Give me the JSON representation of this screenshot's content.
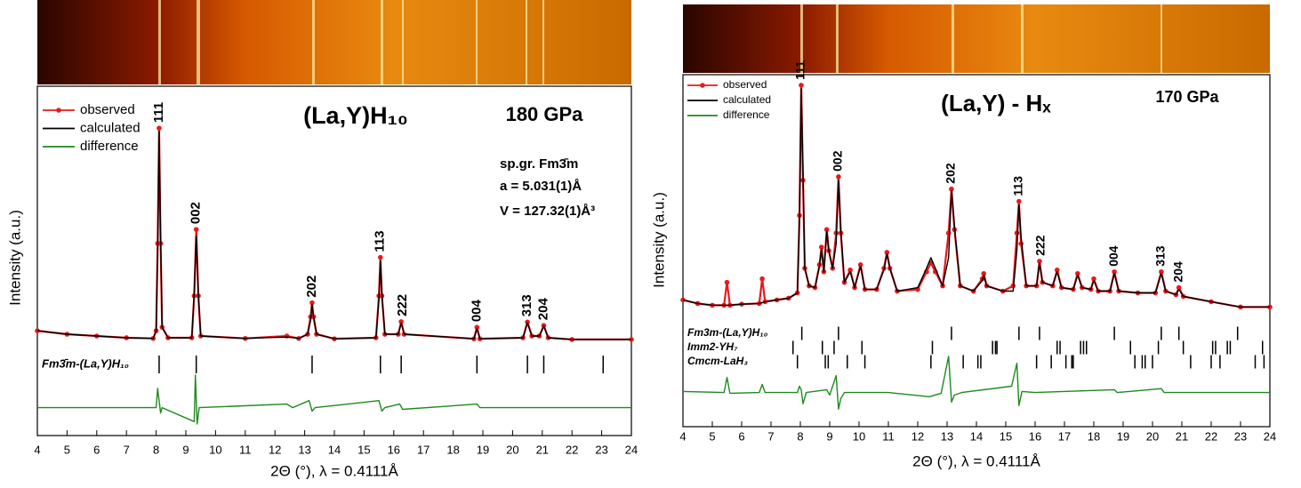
{
  "chart_data": [
    {
      "type": "line",
      "title": "(La,Y)H₁₀",
      "annotations": [
        "180 GPa",
        "sp.gr. Fm3̄m",
        "a = 5.031(1)Å",
        "V = 127.32(1)Å³"
      ],
      "x_label": "2Θ (°), λ = 0.4111Å",
      "y_label": "Intensity (a.u.)",
      "xlim": [
        4,
        24
      ],
      "xticks": [
        4,
        5,
        6,
        7,
        8,
        9,
        10,
        11,
        12,
        13,
        14,
        15,
        16,
        17,
        18,
        19,
        20,
        21,
        22,
        23,
        24
      ],
      "ylim": [
        0,
        100
      ],
      "series": [
        {
          "name": "observed",
          "color": "#e8191c",
          "marker": true,
          "x": [
            4.0,
            5.0,
            6.0,
            7.0,
            7.9,
            8.0,
            8.05,
            8.1,
            8.15,
            8.2,
            8.4,
            9.2,
            9.28,
            9.35,
            9.42,
            9.5,
            11.0,
            12.4,
            12.8,
            13.1,
            13.2,
            13.25,
            13.3,
            13.4,
            14.0,
            15.4,
            15.5,
            15.55,
            15.6,
            15.7,
            16.15,
            16.25,
            16.35,
            18.7,
            18.8,
            18.9,
            20.35,
            20.5,
            20.65,
            20.9,
            21.05,
            21.2,
            22.0,
            24.0
          ],
          "values": [
            30,
            29,
            28.5,
            28,
            27.8,
            30,
            55,
            88,
            55,
            31,
            28,
            28,
            40,
            59,
            40,
            28.5,
            27.8,
            28.5,
            27.8,
            29,
            34,
            38,
            34,
            29,
            27.7,
            28,
            40,
            51,
            40,
            29,
            29,
            32.6,
            29,
            27.7,
            31,
            27.7,
            28,
            32.5,
            28.5,
            28.5,
            31.5,
            28,
            27.5,
            27.5
          ]
        },
        {
          "name": "calculated",
          "color": "#000000",
          "marker": false,
          "x": [
            4.0,
            5.0,
            6.0,
            7.0,
            7.9,
            8.0,
            8.05,
            8.1,
            8.15,
            8.2,
            8.4,
            9.2,
            9.28,
            9.35,
            9.42,
            9.5,
            11.0,
            12.4,
            12.8,
            13.1,
            13.2,
            13.25,
            13.3,
            13.4,
            14.0,
            15.4,
            15.5,
            15.55,
            15.6,
            15.7,
            16.15,
            16.25,
            16.35,
            18.7,
            18.8,
            18.9,
            20.35,
            20.5,
            20.65,
            20.9,
            21.05,
            21.2,
            22.0,
            24.0
          ],
          "values": [
            30,
            29,
            28.5,
            28,
            27.8,
            30,
            52,
            87,
            57,
            31,
            28,
            28,
            41,
            57,
            41,
            28.5,
            27.8,
            28.2,
            27.8,
            29,
            33,
            37.5,
            34,
            29,
            27.7,
            28,
            39,
            50,
            41,
            29,
            29,
            32.2,
            29,
            27.7,
            30.5,
            27.7,
            28,
            32.3,
            28.5,
            28.5,
            31.3,
            28,
            27.5,
            27.5
          ]
        },
        {
          "name": "difference",
          "color": "#1e8a1e",
          "marker": false,
          "x": [
            4.0,
            8.0,
            8.05,
            8.1,
            8.15,
            8.2,
            9.28,
            9.32,
            9.38,
            9.45,
            12.4,
            12.6,
            13.15,
            13.25,
            13.35,
            15.5,
            15.6,
            15.7,
            16.2,
            16.3,
            18.8,
            18.9,
            24.0
          ],
          "values": [
            8,
            8,
            13.5,
            10,
            6.5,
            8,
            4,
            17.3,
            3.3,
            8,
            9,
            8,
            10,
            7,
            8,
            10,
            7,
            8,
            9,
            7.5,
            9,
            8,
            8
          ]
        }
      ],
      "peak_labels": [
        {
          "label": "111",
          "x": 8.1
        },
        {
          "label": "002",
          "x": 9.35
        },
        {
          "label": "202",
          "x": 13.25
        },
        {
          "label": "113",
          "x": 15.55
        },
        {
          "label": "222",
          "x": 16.3
        },
        {
          "label": "004",
          "x": 18.8
        },
        {
          "label": "313",
          "x": 20.5
        },
        {
          "label": "204",
          "x": 21.05
        }
      ],
      "reflections": [
        {
          "name": "Fm3̄m-(La,Y)H₁₀",
          "positions": [
            8.1,
            9.35,
            13.25,
            15.55,
            16.25,
            18.8,
            20.5,
            21.05,
            23.05
          ]
        }
      ]
    },
    {
      "type": "line",
      "title": "(La,Y) - Hₓ",
      "annotations": [
        "170 GPa"
      ],
      "x_label": "2Θ (°), λ = 0.4111Å",
      "y_label": "Intensity (a.u.)",
      "xlim": [
        4,
        24
      ],
      "xticks": [
        4,
        5,
        6,
        7,
        8,
        9,
        10,
        11,
        12,
        13,
        14,
        15,
        16,
        17,
        18,
        19,
        20,
        21,
        22,
        23,
        24
      ],
      "ylim": [
        0,
        100
      ],
      "series": [
        {
          "name": "observed",
          "color": "#e8191c",
          "marker": true,
          "x": [
            4.0,
            4.5,
            5.0,
            5.4,
            5.5,
            5.6,
            6.0,
            6.6,
            6.7,
            6.8,
            7.2,
            7.6,
            7.9,
            7.97,
            8.03,
            8.09,
            8.15,
            8.3,
            8.5,
            8.65,
            8.72,
            8.8,
            8.9,
            8.97,
            9.1,
            9.22,
            9.3,
            9.38,
            9.5,
            9.7,
            9.85,
            10.05,
            10.2,
            10.6,
            10.85,
            10.95,
            11.05,
            11.3,
            12.0,
            12.3,
            12.45,
            12.6,
            12.85,
            13.05,
            13.15,
            13.25,
            13.45,
            13.9,
            14.2,
            14.25,
            14.35,
            14.9,
            15.25,
            15.38,
            15.45,
            15.52,
            15.7,
            16.05,
            16.15,
            16.25,
            16.6,
            16.75,
            16.9,
            17.3,
            17.45,
            17.6,
            17.9,
            18.0,
            18.15,
            18.55,
            18.7,
            18.85,
            19.5,
            20.1,
            20.3,
            20.45,
            20.8,
            20.9,
            21.05,
            22.0,
            23.0,
            24.0
          ],
          "values": [
            36,
            35,
            34.5,
            34.5,
            41,
            34.5,
            34.8,
            35,
            42,
            35.5,
            36,
            36.5,
            38,
            60,
            97,
            70,
            45,
            40,
            39.5,
            46,
            51,
            44,
            56,
            50,
            45,
            55,
            71,
            55,
            41,
            44.5,
            39.5,
            46,
            39,
            39,
            45,
            49.5,
            45,
            38.5,
            39,
            44,
            46.5,
            44,
            40,
            55,
            67.5,
            56,
            40,
            38.5,
            42,
            43.5,
            40,
            38.5,
            40,
            55,
            64,
            52,
            40,
            40,
            47,
            41,
            40,
            44.5,
            39.5,
            39,
            43.5,
            39.5,
            39,
            42,
            38.5,
            38.5,
            44,
            38.5,
            38,
            38,
            44,
            38.5,
            37.5,
            39.5,
            37,
            35.5,
            34,
            34
          ]
        },
        {
          "name": "calculated",
          "color": "#000000",
          "marker": false,
          "x": [
            4.0,
            4.5,
            5.0,
            5.4,
            5.5,
            5.6,
            6.0,
            6.6,
            6.7,
            6.8,
            7.2,
            7.6,
            7.9,
            7.97,
            8.03,
            8.09,
            8.15,
            8.3,
            8.5,
            8.65,
            8.72,
            8.8,
            8.9,
            8.97,
            9.1,
            9.22,
            9.3,
            9.38,
            9.5,
            9.7,
            9.85,
            10.05,
            10.2,
            10.6,
            10.85,
            10.95,
            11.05,
            11.3,
            12.0,
            12.3,
            12.45,
            12.6,
            12.85,
            13.05,
            13.15,
            13.25,
            13.45,
            13.9,
            14.2,
            14.25,
            14.35,
            14.9,
            15.25,
            15.38,
            15.45,
            15.52,
            15.7,
            16.05,
            16.15,
            16.25,
            16.6,
            16.75,
            16.9,
            17.3,
            17.45,
            17.6,
            17.9,
            18.0,
            18.15,
            18.55,
            18.7,
            18.85,
            19.5,
            20.1,
            20.3,
            20.45,
            20.8,
            20.9,
            21.05,
            22.0,
            23.0,
            24.0
          ],
          "values": [
            36,
            35,
            34.5,
            34.5,
            34.5,
            34.5,
            34.8,
            35,
            35.2,
            35.5,
            36,
            36.5,
            38,
            58,
            96,
            72,
            45,
            40,
            39.5,
            45.5,
            50.5,
            44,
            55.5,
            50,
            45,
            52,
            70,
            56,
            41,
            44,
            39.5,
            45.5,
            39,
            39,
            44.5,
            49,
            45,
            38.5,
            39.5,
            45,
            48,
            45,
            40,
            48,
            67,
            57,
            40,
            38.5,
            41.5,
            43,
            40,
            38.5,
            38.5,
            50,
            63,
            54,
            40,
            40,
            46.5,
            41,
            40,
            44,
            39.5,
            39,
            43,
            39.5,
            39,
            41.5,
            38.5,
            38.5,
            43.5,
            38.5,
            38,
            38,
            43.5,
            38.5,
            37.5,
            39,
            37,
            35.5,
            34,
            34
          ]
        },
        {
          "name": "difference",
          "color": "#1e8a1e",
          "marker": false,
          "x": [
            4.0,
            5.4,
            5.5,
            5.6,
            6.6,
            6.7,
            6.8,
            7.9,
            7.97,
            8.03,
            8.09,
            8.2,
            8.9,
            9.0,
            9.22,
            9.3,
            9.38,
            9.5,
            11.0,
            12.4,
            12.8,
            13.05,
            13.15,
            13.25,
            13.5,
            15.2,
            15.38,
            15.45,
            15.55,
            16.0,
            18.7,
            18.8,
            20.3,
            20.4,
            24.0
          ],
          "values": [
            10,
            9.7,
            14,
            9.5,
            9.7,
            12,
            9.7,
            9.7,
            11.5,
            10.5,
            6.5,
            9.7,
            10.5,
            9,
            14.5,
            5,
            8,
            9.7,
            9.7,
            8.5,
            9.5,
            20,
            7,
            9,
            9.7,
            11.5,
            18,
            6,
            10,
            9.7,
            10.5,
            9.7,
            10.8,
            9.7,
            9.7
          ]
        }
      ],
      "peak_labels": [
        {
          "label": "111",
          "x": 8.03
        },
        {
          "label": "002",
          "x": 9.3
        },
        {
          "label": "202",
          "x": 13.15
        },
        {
          "label": "113",
          "x": 15.45
        },
        {
          "label": "222",
          "x": 16.2
        },
        {
          "label": "004",
          "x": 18.7
        },
        {
          "label": "313",
          "x": 20.3
        },
        {
          "label": "204",
          "x": 20.9
        }
      ],
      "reflections": [
        {
          "name": "Fm3m-(La,Y)H₁₀",
          "positions": [
            8.05,
            9.3,
            13.15,
            15.45,
            16.15,
            18.7,
            20.3,
            20.9,
            22.9
          ]
        },
        {
          "name": "Imm2-YH₇",
          "positions": [
            7.75,
            8.75,
            9.15,
            10.1,
            12.5,
            14.55,
            14.65,
            14.7,
            16.75,
            16.85,
            17.55,
            17.65,
            17.75,
            19.25,
            20.2,
            21.05,
            22.05,
            22.15,
            22.55,
            22.65,
            23.75
          ]
        },
        {
          "name": "Cmcm-LaH₃",
          "positions": [
            7.9,
            8.85,
            8.95,
            9.6,
            10.2,
            12.45,
            13.55,
            14.05,
            14.15,
            16.05,
            16.55,
            17.05,
            17.25,
            17.3,
            19.4,
            19.65,
            19.75,
            20.0,
            21.3,
            22.0,
            22.3,
            23.5,
            23.8
          ]
        }
      ]
    }
  ]
}
